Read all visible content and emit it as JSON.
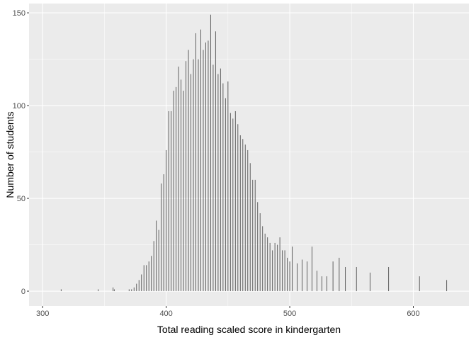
{
  "chart_data": {
    "type": "bar",
    "title": "",
    "xlabel": "Total reading scaled score in kindergarten",
    "ylabel": "Number of students",
    "xlim": [
      289,
      645
    ],
    "ylim": [
      -8,
      155
    ],
    "x_ticks": [
      300,
      400,
      500,
      600
    ],
    "y_ticks": [
      0,
      50,
      100,
      150
    ],
    "grid": true,
    "legend": "none",
    "colors": {
      "panel": "#EBEBEB",
      "grid": "#FFFFFF",
      "bar": "#595959",
      "tick_label": "#4D4D4D"
    },
    "x": [
      315,
      345,
      357,
      358,
      370,
      372,
      374,
      376,
      378,
      380,
      382,
      384,
      386,
      388,
      390,
      392,
      394,
      396,
      398,
      400,
      402,
      404,
      406,
      408,
      410,
      412,
      414,
      416,
      418,
      420,
      422,
      424,
      426,
      428,
      430,
      432,
      434,
      436,
      438,
      440,
      442,
      444,
      446,
      448,
      450,
      452,
      454,
      456,
      458,
      460,
      462,
      464,
      466,
      468,
      470,
      472,
      474,
      476,
      478,
      480,
      482,
      484,
      486,
      488,
      490,
      492,
      494,
      496,
      498,
      500,
      502,
      506,
      510,
      514,
      518,
      522,
      526,
      530,
      535,
      540,
      545,
      554,
      565,
      580,
      605,
      627
    ],
    "values": [
      1,
      1,
      2,
      1,
      1,
      1,
      2,
      4,
      6,
      9,
      14,
      14,
      16,
      19,
      27,
      38,
      33,
      58,
      63,
      76,
      97,
      97,
      108,
      110,
      121,
      114,
      108,
      124,
      130,
      117,
      125,
      139,
      125,
      141,
      130,
      134,
      135,
      149,
      122,
      140,
      117,
      120,
      112,
      104,
      113,
      96,
      93,
      97,
      90,
      84,
      82,
      79,
      76,
      69,
      60,
      60,
      48,
      42,
      35,
      31,
      29,
      26,
      22,
      26,
      25,
      29,
      22,
      22,
      18,
      16,
      24,
      15,
      17,
      16,
      24,
      11,
      8,
      8,
      16,
      18,
      13,
      13,
      10,
      13,
      8,
      6
    ]
  }
}
